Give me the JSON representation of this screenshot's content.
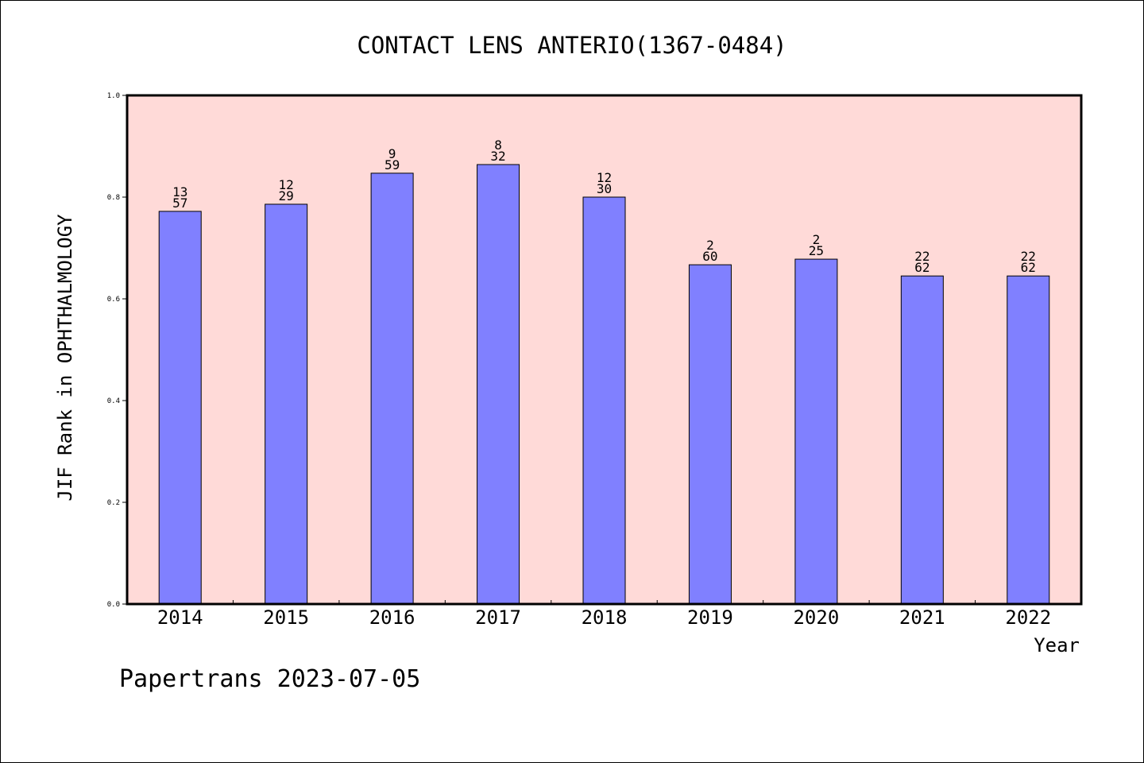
{
  "chart_data": {
    "type": "bar",
    "title": "CONTACT LENS ANTERIO(1367-0484)",
    "xlabel": "Year",
    "ylabel": "JIF Rank in OPHTHALMOLOGY",
    "ylim": [
      0,
      1.0
    ],
    "yticks": [
      "0.0",
      "0.2",
      "0.4",
      "0.6",
      "0.8",
      "1.0"
    ],
    "categories": [
      "2014",
      "2015",
      "2016",
      "2017",
      "2018",
      "2019",
      "2020",
      "2021",
      "2022"
    ],
    "values": [
      0.772,
      0.786,
      0.847,
      0.864,
      0.8,
      0.667,
      0.678,
      0.645,
      0.645
    ],
    "rank_labels": [
      "13",
      "12",
      "9",
      "8",
      "12",
      "2",
      "2",
      "22",
      "22"
    ],
    "total_labels": [
      "57",
      "29",
      "59",
      "32",
      "30",
      "60",
      "25",
      "62",
      "62"
    ],
    "grid": false,
    "colors": {
      "bar": "#8080ff",
      "plot_bg": "#ffdad8"
    }
  },
  "footer": "Papertrans 2023-07-05"
}
